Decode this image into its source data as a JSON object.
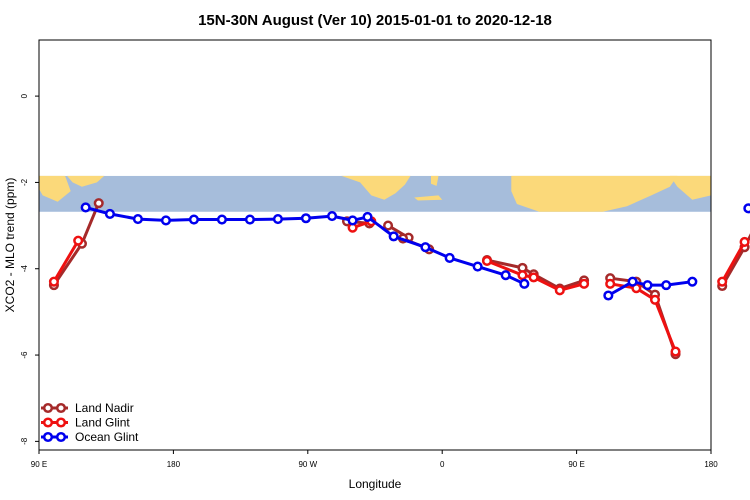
{
  "chart_data": {
    "type": "line",
    "title": "15N-30N August (Ver 10)   2015-01-01 to 2020-12-18",
    "xlabel": "Longitude",
    "ylabel": "XCO2 - MLO trend (ppm)",
    "xlim": [
      90,
      450
    ],
    "ylim": [
      -8.2,
      1.3
    ],
    "x_ticks": [
      {
        "value": 90,
        "label": "90 E"
      },
      {
        "value": 180,
        "label": "180"
      },
      {
        "value": 270,
        "label": "90 W"
      },
      {
        "value": 360,
        "label": "0"
      },
      {
        "value": 450,
        "label": "90 E"
      },
      {
        "value": 540,
        "label": "180"
      }
    ],
    "y_ticks": [
      {
        "value": 0,
        "label": "0"
      },
      {
        "value": -2,
        "label": "-2"
      },
      {
        "value": -4,
        "label": "-4"
      },
      {
        "value": -6,
        "label": "-6"
      },
      {
        "value": -8,
        "label": "-8"
      }
    ],
    "legend_position": "bottom-left",
    "map_band": {
      "y_top": -1.85,
      "y_bottom": -2.68,
      "ocean_color": "#a6bddb",
      "land_color": "#fbd97a"
    },
    "series": [
      {
        "name": "Land Nadir",
        "color": "#a52a2a",
        "segments": [
          {
            "x": [
              98,
              113,
              122
            ],
            "y": [
              -4.38,
              -3.42,
              -2.48
            ]
          },
          {
            "x": [
              255,
              267
            ],
            "y": [
              -2.9,
              -2.95
            ]
          },
          {
            "x": [
              277,
              288
            ],
            "y": [
              -3.0,
              -3.28
            ]
          },
          {
            "x": [
              285,
              299
            ],
            "y": [
              -3.3,
              -3.55
            ]
          },
          {
            "x": [
              330,
              349,
              355,
              369,
              382
            ],
            "y": [
              -3.8,
              -3.98,
              -4.13,
              -4.46,
              -4.27
            ]
          },
          {
            "x": [
              396,
              410,
              420,
              431
            ],
            "y": [
              -4.22,
              -4.3,
              -4.6,
              -5.98
            ]
          },
          {
            "x": [
              456,
              468,
              480
            ],
            "y": [
              -4.4,
              -3.5,
              -2.48
            ]
          }
        ]
      },
      {
        "name": "Land Glint",
        "color": "#ee1111",
        "segments": [
          {
            "x": [
              98,
              111
            ],
            "y": [
              -4.3,
              -3.35
            ]
          },
          {
            "x": [
              258,
              268
            ],
            "y": [
              -3.05,
              -2.9
            ]
          },
          {
            "x": [
              330,
              349,
              355,
              369,
              382
            ],
            "y": [
              -3.82,
              -4.15,
              -4.2,
              -4.5,
              -4.35
            ]
          },
          {
            "x": [
              396,
              410,
              420,
              431
            ],
            "y": [
              -4.35,
              -4.45,
              -4.72,
              -5.92
            ]
          },
          {
            "x": [
              456,
              468
            ],
            "y": [
              -4.3,
              -3.38
            ]
          }
        ]
      },
      {
        "name": "Ocean Glint",
        "color": "#0000ee",
        "segments": [
          {
            "x": [
              115,
              128,
              143,
              158,
              173,
              188,
              203,
              218,
              233,
              247,
              258,
              266,
              280,
              297,
              310,
              325,
              340,
              350
            ],
            "y": [
              -2.58,
              -2.73,
              -2.85,
              -2.88,
              -2.86,
              -2.86,
              -2.86,
              -2.85,
              -2.83,
              -2.78,
              -2.88,
              -2.8,
              -3.25,
              -3.5,
              -3.75,
              -3.95,
              -4.15,
              -4.35
            ]
          },
          {
            "x": [
              395,
              408,
              416,
              426,
              440
            ],
            "y": [
              -4.62,
              -4.3,
              -4.38,
              -4.38,
              -4.3
            ]
          },
          {
            "x": [
              470,
              485,
              500,
              515,
              530
            ],
            "y": [
              -2.6,
              -2.75,
              -2.85,
              -2.9,
              -2.86
            ]
          }
        ]
      }
    ]
  }
}
